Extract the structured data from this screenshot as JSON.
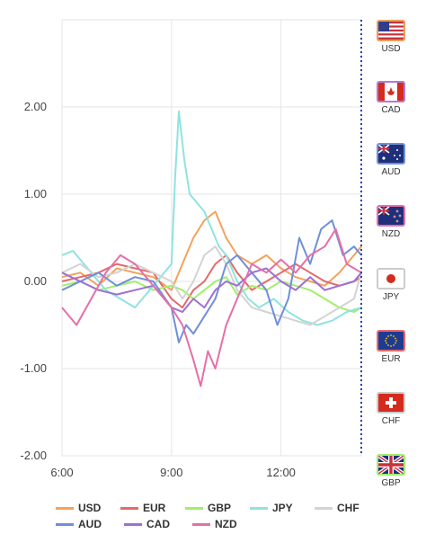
{
  "chart_data": {
    "type": "line",
    "x_ticks": [
      "6:00",
      "9:00",
      "12:00"
    ],
    "y_ticks": [
      "2.00",
      "1.00",
      "0.00",
      "-1.00",
      "-2.00"
    ],
    "ylim": [
      -2.0,
      3.0
    ],
    "x_range_hours": [
      6.0,
      14.2
    ],
    "grid": true,
    "series": [
      {
        "name": "USD",
        "color": "#f2a35c",
        "points": [
          [
            6.0,
            0.05
          ],
          [
            6.5,
            0.1
          ],
          [
            7.0,
            -0.05
          ],
          [
            7.5,
            0.15
          ],
          [
            8.0,
            0.1
          ],
          [
            8.5,
            0.05
          ],
          [
            9.0,
            -0.1
          ],
          [
            9.3,
            0.2
          ],
          [
            9.6,
            0.5
          ],
          [
            9.9,
            0.7
          ],
          [
            10.2,
            0.8
          ],
          [
            10.5,
            0.5
          ],
          [
            10.8,
            0.3
          ],
          [
            11.2,
            0.2
          ],
          [
            11.6,
            0.3
          ],
          [
            12.0,
            0.15
          ],
          [
            12.4,
            0.05
          ],
          [
            12.8,
            0.0
          ],
          [
            13.2,
            -0.05
          ],
          [
            13.6,
            0.1
          ],
          [
            14.0,
            0.3
          ],
          [
            14.2,
            0.4
          ]
        ]
      },
      {
        "name": "EUR",
        "color": "#e36a6a",
        "points": [
          [
            6.0,
            0.0
          ],
          [
            6.5,
            0.05
          ],
          [
            7.0,
            0.1
          ],
          [
            7.5,
            0.2
          ],
          [
            8.0,
            0.15
          ],
          [
            8.5,
            0.1
          ],
          [
            9.0,
            -0.2
          ],
          [
            9.3,
            -0.3
          ],
          [
            9.6,
            -0.1
          ],
          [
            9.9,
            0.0
          ],
          [
            10.2,
            0.2
          ],
          [
            10.5,
            0.3
          ],
          [
            10.8,
            0.1
          ],
          [
            11.2,
            -0.1
          ],
          [
            11.6,
            0.0
          ],
          [
            12.0,
            0.1
          ],
          [
            12.4,
            0.2
          ],
          [
            12.8,
            0.1
          ],
          [
            13.2,
            0.0
          ],
          [
            13.6,
            -0.05
          ],
          [
            14.0,
            0.0
          ],
          [
            14.2,
            0.05
          ]
        ]
      },
      {
        "name": "GBP",
        "color": "#9fef6d",
        "points": [
          [
            6.0,
            -0.05
          ],
          [
            6.5,
            0.0
          ],
          [
            7.0,
            -0.1
          ],
          [
            7.5,
            -0.05
          ],
          [
            8.0,
            0.0
          ],
          [
            8.5,
            -0.1
          ],
          [
            9.0,
            -0.05
          ],
          [
            9.3,
            -0.1
          ],
          [
            9.6,
            -0.2
          ],
          [
            9.9,
            -0.1
          ],
          [
            10.2,
            0.0
          ],
          [
            10.5,
            0.05
          ],
          [
            10.8,
            -0.15
          ],
          [
            11.2,
            -0.05
          ],
          [
            11.6,
            -0.1
          ],
          [
            12.0,
            0.0
          ],
          [
            12.4,
            -0.05
          ],
          [
            12.8,
            -0.1
          ],
          [
            13.2,
            -0.2
          ],
          [
            13.6,
            -0.3
          ],
          [
            14.0,
            -0.35
          ],
          [
            14.2,
            -0.3
          ]
        ]
      },
      {
        "name": "JPY",
        "color": "#8fe3df",
        "points": [
          [
            6.0,
            0.3
          ],
          [
            6.3,
            0.35
          ],
          [
            6.8,
            0.1
          ],
          [
            7.2,
            -0.1
          ],
          [
            7.6,
            -0.2
          ],
          [
            8.0,
            -0.3
          ],
          [
            8.4,
            -0.1
          ],
          [
            8.8,
            0.1
          ],
          [
            9.0,
            0.2
          ],
          [
            9.1,
            1.2
          ],
          [
            9.2,
            1.95
          ],
          [
            9.35,
            1.4
          ],
          [
            9.5,
            1.0
          ],
          [
            9.7,
            0.9
          ],
          [
            9.9,
            0.8
          ],
          [
            10.1,
            0.6
          ],
          [
            10.3,
            0.4
          ],
          [
            10.5,
            0.3
          ],
          [
            10.8,
            0.0
          ],
          [
            11.1,
            -0.2
          ],
          [
            11.4,
            -0.3
          ],
          [
            11.8,
            -0.2
          ],
          [
            12.2,
            -0.35
          ],
          [
            12.6,
            -0.45
          ],
          [
            13.0,
            -0.5
          ],
          [
            13.4,
            -0.45
          ],
          [
            13.8,
            -0.35
          ],
          [
            14.2,
            -0.3
          ]
        ]
      },
      {
        "name": "CHF",
        "color": "#d3d3d3",
        "points": [
          [
            6.0,
            0.1
          ],
          [
            6.5,
            0.2
          ],
          [
            7.0,
            0.05
          ],
          [
            7.5,
            0.1
          ],
          [
            8.0,
            0.2
          ],
          [
            8.5,
            0.1
          ],
          [
            9.0,
            0.0
          ],
          [
            9.3,
            -0.2
          ],
          [
            9.6,
            0.0
          ],
          [
            9.9,
            0.3
          ],
          [
            10.2,
            0.4
          ],
          [
            10.5,
            0.2
          ],
          [
            10.8,
            -0.1
          ],
          [
            11.2,
            -0.3
          ],
          [
            11.6,
            -0.35
          ],
          [
            12.0,
            -0.4
          ],
          [
            12.4,
            -0.45
          ],
          [
            12.8,
            -0.5
          ],
          [
            13.2,
            -0.4
          ],
          [
            13.6,
            -0.3
          ],
          [
            14.0,
            -0.2
          ],
          [
            14.2,
            0.1
          ]
        ]
      },
      {
        "name": "AUD",
        "color": "#6f8fd9",
        "points": [
          [
            6.0,
            -0.1
          ],
          [
            6.5,
            0.0
          ],
          [
            7.0,
            0.1
          ],
          [
            7.5,
            -0.05
          ],
          [
            8.0,
            0.05
          ],
          [
            8.5,
            0.0
          ],
          [
            9.0,
            -0.3
          ],
          [
            9.2,
            -0.7
          ],
          [
            9.4,
            -0.5
          ],
          [
            9.6,
            -0.6
          ],
          [
            9.9,
            -0.4
          ],
          [
            10.2,
            -0.2
          ],
          [
            10.5,
            0.2
          ],
          [
            10.8,
            0.3
          ],
          [
            11.2,
            0.1
          ],
          [
            11.6,
            -0.1
          ],
          [
            11.9,
            -0.5
          ],
          [
            12.2,
            -0.2
          ],
          [
            12.5,
            0.5
          ],
          [
            12.8,
            0.2
          ],
          [
            13.1,
            0.6
          ],
          [
            13.4,
            0.7
          ],
          [
            13.7,
            0.3
          ],
          [
            14.0,
            0.4
          ],
          [
            14.2,
            0.3
          ]
        ]
      },
      {
        "name": "CAD",
        "color": "#9c6fd6",
        "points": [
          [
            6.0,
            0.1
          ],
          [
            6.5,
            0.0
          ],
          [
            7.0,
            -0.1
          ],
          [
            7.5,
            -0.15
          ],
          [
            8.0,
            -0.1
          ],
          [
            8.5,
            -0.05
          ],
          [
            9.0,
            -0.3
          ],
          [
            9.3,
            -0.35
          ],
          [
            9.6,
            -0.2
          ],
          [
            9.9,
            -0.3
          ],
          [
            10.2,
            -0.1
          ],
          [
            10.5,
            0.0
          ],
          [
            10.8,
            -0.05
          ],
          [
            11.2,
            0.1
          ],
          [
            11.6,
            0.15
          ],
          [
            12.0,
            0.0
          ],
          [
            12.4,
            -0.1
          ],
          [
            12.8,
            0.05
          ],
          [
            13.2,
            -0.1
          ],
          [
            13.6,
            -0.05
          ],
          [
            14.0,
            0.0
          ],
          [
            14.2,
            0.1
          ]
        ]
      },
      {
        "name": "NZD",
        "color": "#e56fa8",
        "points": [
          [
            6.0,
            -0.3
          ],
          [
            6.4,
            -0.5
          ],
          [
            6.8,
            -0.2
          ],
          [
            7.2,
            0.1
          ],
          [
            7.6,
            0.3
          ],
          [
            8.0,
            0.2
          ],
          [
            8.4,
            0.0
          ],
          [
            8.8,
            -0.2
          ],
          [
            9.0,
            -0.3
          ],
          [
            9.3,
            -0.5
          ],
          [
            9.6,
            -0.9
          ],
          [
            9.8,
            -1.2
          ],
          [
            10.0,
            -0.8
          ],
          [
            10.2,
            -1.0
          ],
          [
            10.5,
            -0.5
          ],
          [
            10.8,
            -0.2
          ],
          [
            11.2,
            0.2
          ],
          [
            11.6,
            0.1
          ],
          [
            12.0,
            0.25
          ],
          [
            12.4,
            0.1
          ],
          [
            12.8,
            0.3
          ],
          [
            13.2,
            0.4
          ],
          [
            13.5,
            0.6
          ],
          [
            13.8,
            0.2
          ],
          [
            14.2,
            0.1
          ]
        ]
      }
    ]
  },
  "flags": [
    {
      "code": "USD",
      "icon": "us-flag-icon",
      "border": "#e8a05a"
    },
    {
      "code": "CAD",
      "icon": "ca-flag-icon",
      "border": "#b07bd8"
    },
    {
      "code": "AUD",
      "icon": "au-flag-icon",
      "border": "#6f8fd9"
    },
    {
      "code": "NZD",
      "icon": "nz-flag-icon",
      "border": "#e56fa8"
    },
    {
      "code": "JPY",
      "icon": "jp-flag-icon",
      "border": "#cccccc"
    },
    {
      "code": "EUR",
      "icon": "eu-flag-icon",
      "border": "#e36a6a"
    },
    {
      "code": "CHF",
      "icon": "ch-flag-icon",
      "border": "#cccccc"
    },
    {
      "code": "GBP",
      "icon": "gb-flag-icon",
      "border": "#9fef6d"
    }
  ],
  "legend": {
    "row1": [
      {
        "label": "USD",
        "color": "#f2a35c"
      },
      {
        "label": "EUR",
        "color": "#e36a6a"
      },
      {
        "label": "GBP",
        "color": "#9fef6d"
      },
      {
        "label": "JPY",
        "color": "#8fe3df"
      },
      {
        "label": "CHF",
        "color": "#d3d3d3"
      }
    ],
    "row2": [
      {
        "label": "AUD",
        "color": "#6f8fd9"
      },
      {
        "label": "CAD",
        "color": "#9c6fd6"
      },
      {
        "label": "NZD",
        "color": "#e56fa8"
      }
    ]
  }
}
